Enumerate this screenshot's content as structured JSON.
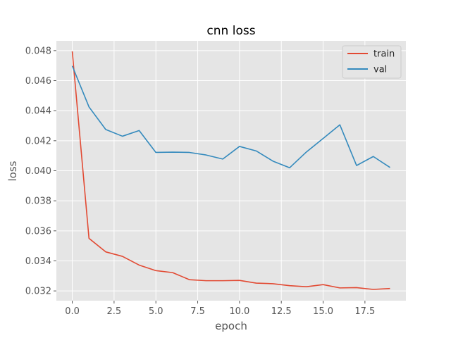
{
  "chart_data": {
    "type": "line",
    "title": "cnn loss",
    "xlabel": "epoch",
    "ylabel": "loss",
    "xlim": [
      -0.95,
      19.95
    ],
    "ylim": [
      0.03135,
      0.04865
    ],
    "xticks": [
      0,
      2.5,
      5,
      7.5,
      10,
      12.5,
      15,
      17.5
    ],
    "xtick_labels": [
      "0.0",
      "2.5",
      "5.0",
      "7.5",
      "10.0",
      "12.5",
      "15.0",
      "17.5"
    ],
    "yticks": [
      0.032,
      0.034,
      0.036,
      0.038,
      0.04,
      0.042,
      0.044,
      0.046,
      0.048
    ],
    "ytick_labels": [
      "0.032",
      "0.034",
      "0.036",
      "0.038",
      "0.040",
      "0.042",
      "0.044",
      "0.046",
      "0.048"
    ],
    "grid": true,
    "legend_position": "top-right",
    "x": [
      0,
      1,
      2,
      3,
      4,
      5,
      6,
      7,
      8,
      9,
      10,
      11,
      12,
      13,
      14,
      15,
      16,
      17,
      18,
      19
    ],
    "series": [
      {
        "name": "train",
        "color": "#E24A33",
        "values": [
          0.04795,
          0.0355,
          0.0346,
          0.0343,
          0.03372,
          0.03335,
          0.03322,
          0.03275,
          0.03268,
          0.03268,
          0.0327,
          0.03252,
          0.03248,
          0.03235,
          0.03228,
          0.03242,
          0.0322,
          0.03222,
          0.0321,
          0.03216
        ]
      },
      {
        "name": "val",
        "color": "#348ABD",
        "values": [
          0.04698,
          0.04425,
          0.04275,
          0.0423,
          0.04268,
          0.04122,
          0.04124,
          0.04122,
          0.04105,
          0.04078,
          0.04162,
          0.04132,
          0.04064,
          0.0402,
          0.04125,
          0.04215,
          0.04306,
          0.04035,
          0.04095,
          0.04022
        ]
      }
    ]
  }
}
